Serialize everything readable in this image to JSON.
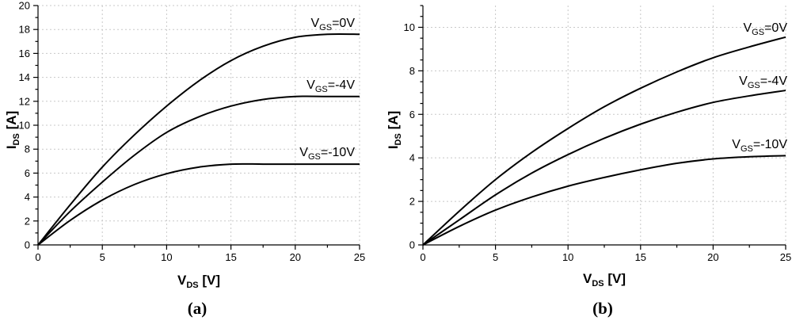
{
  "chart_data": [
    {
      "type": "line",
      "panel_label": "(a)",
      "xlabel": {
        "main": "V",
        "sub": "DS",
        "unit": " [V]"
      },
      "ylabel": {
        "main": "I",
        "sub": "DS",
        "unit": " [A]"
      },
      "xlim": [
        0,
        25
      ],
      "ylim": [
        0,
        20
      ],
      "xticks": [
        "0",
        "5",
        "10",
        "15",
        "20",
        "25"
      ],
      "yticks": [
        "0",
        "2",
        "4",
        "6",
        "8",
        "10",
        "12",
        "14",
        "16",
        "18",
        "20"
      ],
      "grid": true,
      "series": [
        {
          "name": "V_GS=0V",
          "label_parts": {
            "main": "V",
            "sub": "GS",
            "rest": "=0V"
          },
          "x": [
            0,
            2.5,
            5,
            7.5,
            10,
            12.5,
            15,
            17.5,
            20,
            22.5,
            25
          ],
          "y": [
            0,
            3.35,
            6.5,
            9.2,
            11.6,
            13.7,
            15.4,
            16.6,
            17.35,
            17.6,
            17.6
          ]
        },
        {
          "name": "V_GS=-4V",
          "label_parts": {
            "main": "V",
            "sub": "GS",
            "rest": "=-4V"
          },
          "x": [
            0,
            2.5,
            5,
            7.5,
            10,
            12.5,
            15,
            17.5,
            20,
            22.5,
            25
          ],
          "y": [
            0,
            2.8,
            5.25,
            7.5,
            9.4,
            10.7,
            11.6,
            12.15,
            12.4,
            12.4,
            12.4
          ]
        },
        {
          "name": "V_GS=-10V",
          "label_parts": {
            "main": "V",
            "sub": "GS",
            "rest": "=-10V"
          },
          "x": [
            0,
            2.5,
            5,
            7.5,
            10,
            12.5,
            15,
            17.5,
            20,
            22.5,
            25
          ],
          "y": [
            0,
            2.05,
            3.75,
            5.05,
            5.95,
            6.5,
            6.75,
            6.75,
            6.75,
            6.75,
            6.75
          ]
        }
      ]
    },
    {
      "type": "line",
      "panel_label": "(b)",
      "xlabel": {
        "main": "V",
        "sub": "DS",
        "unit": " [V]"
      },
      "ylabel": {
        "main": "I",
        "sub": "DS",
        "unit": " [A]"
      },
      "xlim": [
        0,
        25
      ],
      "ylim": [
        0,
        11
      ],
      "xticks": [
        "0",
        "5",
        "10",
        "15",
        "20",
        "25"
      ],
      "yticks": [
        "0",
        "2",
        "4",
        "6",
        "8",
        "10"
      ],
      "grid": true,
      "series": [
        {
          "name": "V_GS=0V",
          "label_parts": {
            "main": "V",
            "sub": "GS",
            "rest": "=0V"
          },
          "x": [
            0,
            2.5,
            5,
            7.5,
            10,
            12.5,
            15,
            17.5,
            20,
            22.5,
            25
          ],
          "y": [
            0,
            1.55,
            3.0,
            4.25,
            5.35,
            6.35,
            7.2,
            7.95,
            8.6,
            9.1,
            9.55
          ]
        },
        {
          "name": "V_GS=-4V",
          "label_parts": {
            "main": "V",
            "sub": "GS",
            "rest": "=-4V"
          },
          "x": [
            0,
            2.5,
            5,
            7.5,
            10,
            12.5,
            15,
            17.5,
            20,
            22.5,
            25
          ],
          "y": [
            0,
            1.15,
            2.3,
            3.3,
            4.15,
            4.9,
            5.55,
            6.1,
            6.55,
            6.85,
            7.1
          ]
        },
        {
          "name": "V_GS=-10V",
          "label_parts": {
            "main": "V",
            "sub": "GS",
            "rest": "=-10V"
          },
          "x": [
            0,
            2.5,
            5,
            7.5,
            10,
            12.5,
            15,
            17.5,
            20,
            22.5,
            25
          ],
          "y": [
            0,
            0.85,
            1.6,
            2.2,
            2.7,
            3.1,
            3.45,
            3.75,
            3.95,
            4.05,
            4.1
          ]
        }
      ]
    }
  ]
}
